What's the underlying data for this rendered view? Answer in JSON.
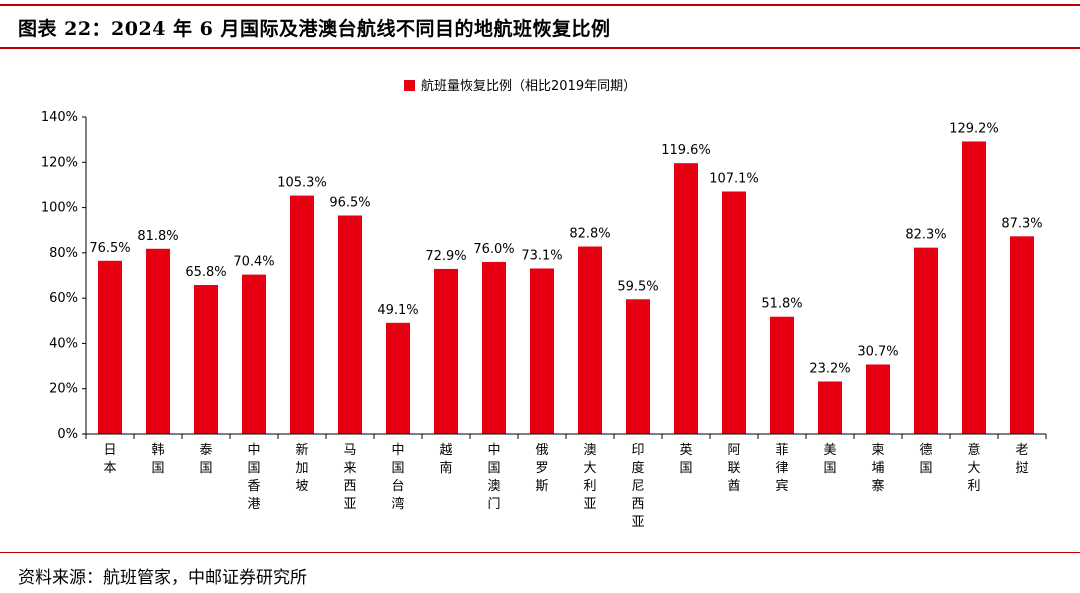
{
  "header": {
    "title": "图表 22：2024 年 6 月国际及港澳台航线不同目的地航班恢复比例"
  },
  "footer": {
    "source": "资料来源：航班管家，中邮证券研究所"
  },
  "chart_data": {
    "type": "bar",
    "title": "",
    "xlabel": "",
    "ylabel": "",
    "ylim": [
      0,
      140
    ],
    "y_ticks": [
      "0%",
      "20%",
      "40%",
      "60%",
      "80%",
      "100%",
      "120%",
      "140%"
    ],
    "legend_position": "top-center",
    "bar_color": "#e60012",
    "categories": [
      "日本",
      "韩国",
      "泰国",
      "中国香港",
      "新加坡",
      "马来西亚",
      "中国台湾",
      "越南",
      "中国澳门",
      "俄罗斯",
      "澳大利亚",
      "印度尼西亚",
      "英国",
      "阿联酋",
      "菲律宾",
      "美国",
      "柬埔寨",
      "德国",
      "意大利",
      "老挝"
    ],
    "series": [
      {
        "name": "航班量恢复比例（相比2019年同期）",
        "values": [
          76.5,
          81.8,
          65.8,
          70.4,
          105.3,
          96.5,
          49.1,
          72.9,
          76.0,
          73.1,
          82.8,
          59.5,
          119.6,
          107.1,
          51.8,
          23.2,
          30.7,
          82.3,
          129.2,
          87.3
        ],
        "labels": [
          "76.5%",
          "81.8%",
          "65.8%",
          "70.4%",
          "105.3%",
          "96.5%",
          "49.1%",
          "72.9%",
          "76.0%",
          "73.1%",
          "82.8%",
          "59.5%",
          "119.6%",
          "107.1%",
          "51.8%",
          "23.2%",
          "30.7%",
          "82.3%",
          "129.2%",
          "87.3%"
        ]
      }
    ]
  }
}
